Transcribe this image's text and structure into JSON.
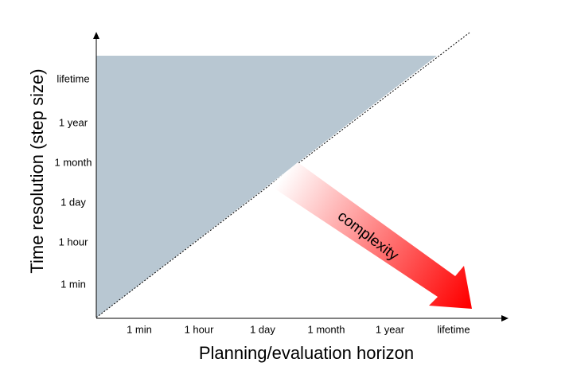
{
  "diagram": {
    "x_axis": {
      "title": "Planning/evaluation horizon",
      "ticks": [
        "1 min",
        "1 hour",
        "1 day",
        "1 month",
        "1 year",
        "lifetime"
      ]
    },
    "y_axis": {
      "title": "Time resolution (step size)",
      "ticks": [
        "1 min",
        "1 hour",
        "1 day",
        "1 month",
        "1 year",
        "lifetime"
      ]
    },
    "arrow": {
      "label": "complexity"
    },
    "colors": {
      "region_fill": "#b8c7d2",
      "diagonal": "#000000",
      "arrow_start": "#ffffff",
      "arrow_end": "#ff0000"
    }
  }
}
